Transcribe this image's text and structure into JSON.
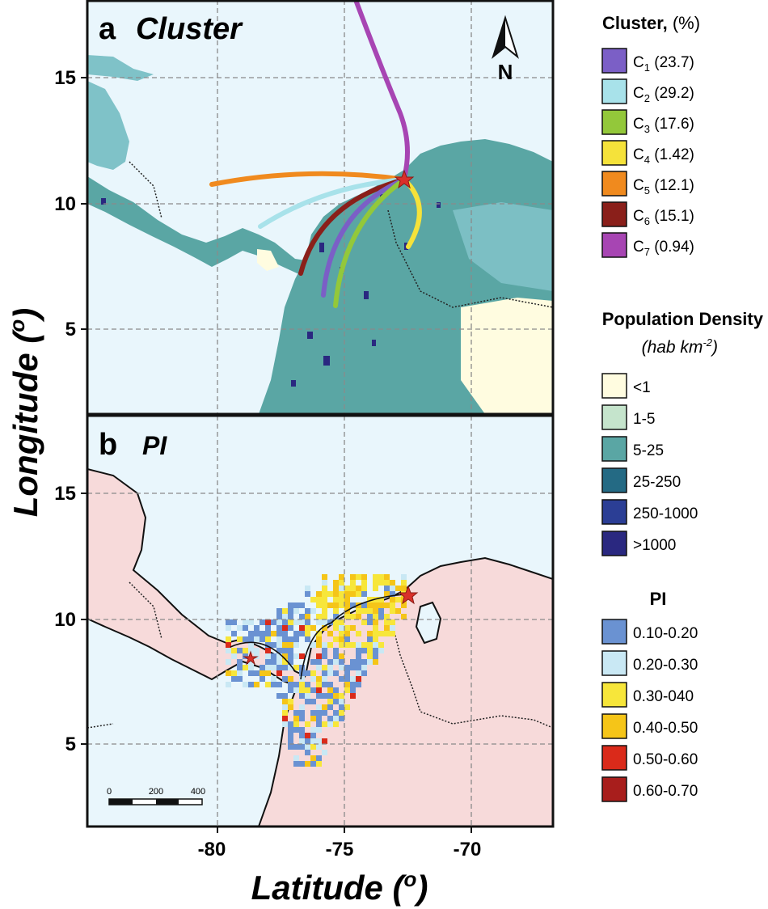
{
  "panels": {
    "a": {
      "letter": "a",
      "title": "Cluster"
    },
    "b": {
      "letter": "b",
      "title": "PI"
    }
  },
  "axes": {
    "xlabel_base": "Latitude (",
    "xlabel_sup": "o",
    "xlabel_close": ")",
    "ylabel_base": "Longitude (",
    "ylabel_sup": "o",
    "ylabel_close": ")",
    "x_ticks": [
      "-80",
      "-75",
      "-70"
    ],
    "y_ticks": [
      "15",
      "10",
      "5"
    ]
  },
  "north_arrow": {
    "label": "N"
  },
  "scale_bar": {
    "labels": [
      "0",
      "200",
      "400"
    ]
  },
  "legend_cluster": {
    "title_bold": "Cluster,",
    "title_rest": " (%)",
    "items": [
      {
        "label": "C",
        "sub": "1",
        "value": " (23.7)",
        "color": "#7B5FC6"
      },
      {
        "label": "C",
        "sub": "2",
        "value": " (29.2)",
        "color": "#A8E2EA"
      },
      {
        "label": "C",
        "sub": "3",
        "value": " (17.6)",
        "color": "#93C83A"
      },
      {
        "label": "C",
        "sub": "4",
        "value": " (1.42)",
        "color": "#F5E23A"
      },
      {
        "label": "C",
        "sub": "5",
        "value": " (12.1)",
        "color": "#F08A1E"
      },
      {
        "label": "C",
        "sub": "6",
        "value": " (15.1)",
        "color": "#8A1F1A"
      },
      {
        "label": " C",
        "sub": "7",
        "value": " (0.94)",
        "color": "#A745B3"
      }
    ]
  },
  "legend_density": {
    "title": "Population Density",
    "unit_base": "hab km",
    "unit_sup": "-2",
    "items": [
      {
        "label": "<1",
        "color": "#FFFCE0"
      },
      {
        "label": "1-5",
        "color": "#C5E4CC"
      },
      {
        "label": "5-25",
        "color": "#5AA6A4"
      },
      {
        "label": "25-250",
        "color": "#246A84"
      },
      {
        "label": "250-1000",
        "color": "#2B3E95"
      },
      {
        "label": ">1000",
        "color": "#2A2880"
      }
    ]
  },
  "legend_pi": {
    "title": "PI",
    "items": [
      {
        "label": "0.10-0.20",
        "color": "#6A92D2"
      },
      {
        "label": "0.20-0.30",
        "color": "#C9E8F4"
      },
      {
        "label": "0.30-040",
        "color": "#F7E63A"
      },
      {
        "label": "0.40-0.50",
        "color": "#F5C518"
      },
      {
        "label": "0.50-0.60",
        "color": "#DA2A1A"
      },
      {
        "label": "0.60-0.70",
        "color": "#A81E1C"
      }
    ]
  },
  "trajectories": [
    {
      "cluster": "C1",
      "color": "#7B5FC6"
    },
    {
      "cluster": "C2",
      "color": "#A8E2EA"
    },
    {
      "cluster": "C3",
      "color": "#93C83A"
    },
    {
      "cluster": "C4",
      "color": "#F5E23A"
    },
    {
      "cluster": "C5",
      "color": "#F08A1E"
    },
    {
      "cluster": "C6",
      "color": "#8A1F1A"
    },
    {
      "cluster": "C7",
      "color": "#A745B3"
    }
  ],
  "colors": {
    "ocean": "#E9F6FC",
    "land_pink": "#F7DADA",
    "land_teal": "#5AA6A4",
    "land_light_teal": "#7FC2C8",
    "dense_urban": "#2A2880",
    "grid": "#8A8A8A",
    "star": "#D9302A"
  }
}
